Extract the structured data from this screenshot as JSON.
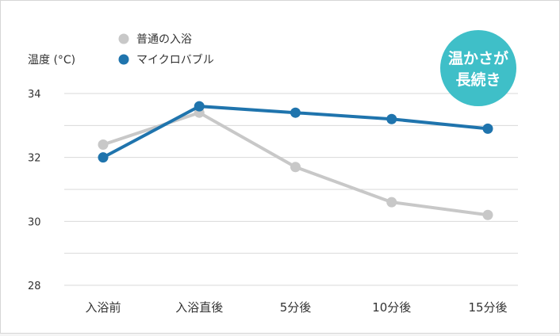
{
  "colors": {
    "normal_bath": "#c8c8c8",
    "micro_bubble": "#1f74ad",
    "badge": "#3fbfc8",
    "grid": "#d9d9d9"
  },
  "badge": {
    "line1": "温かさが",
    "line2": "長続き"
  },
  "chart_data": {
    "type": "line",
    "ylabel": "温度 (°C)",
    "categories": [
      "入浴前",
      "入浴直後",
      "5分後",
      "10分後",
      "15分後"
    ],
    "ylim": [
      28,
      34
    ],
    "yticks": [
      34,
      32,
      30,
      28
    ],
    "ytick_labels": [
      "34",
      "32",
      "30",
      "28"
    ],
    "grid": true,
    "legend_position": "top",
    "series": [
      {
        "name": "普通の入浴",
        "color": "#c8c8c8",
        "values": [
          32.4,
          33.4,
          31.7,
          30.6,
          30.2
        ]
      },
      {
        "name": "マイクロバブル",
        "color": "#1f74ad",
        "values": [
          32.0,
          33.6,
          33.4,
          33.2,
          32.9
        ]
      }
    ]
  }
}
